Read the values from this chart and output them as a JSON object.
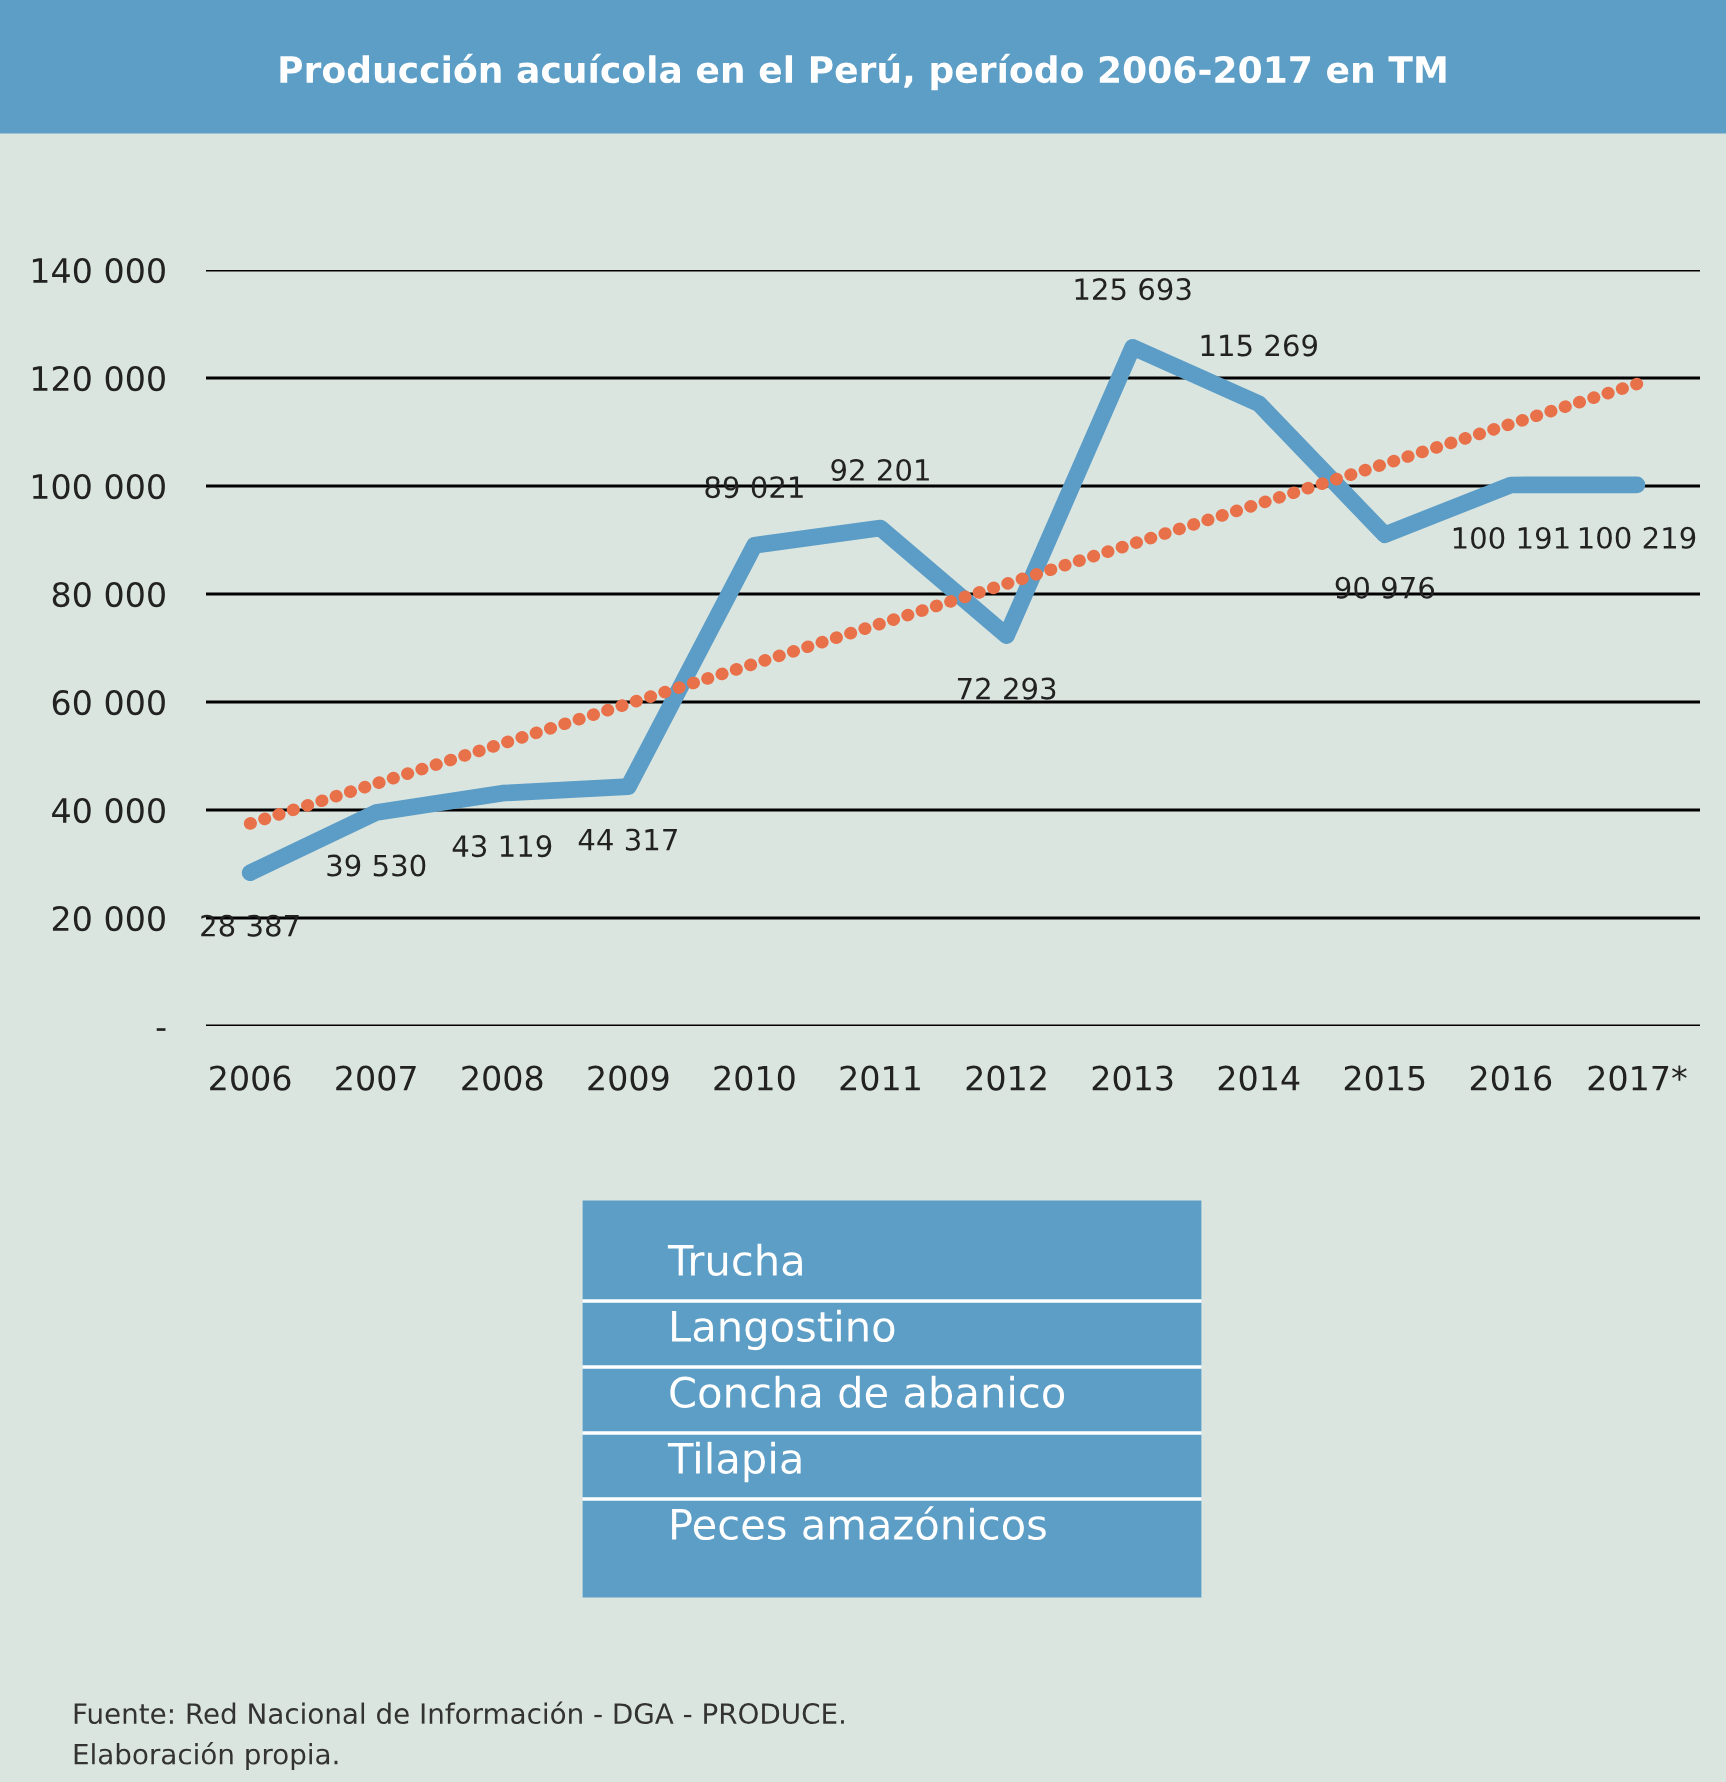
{
  "chart_data": [
    {
      "type": "line",
      "title": "Producción acuícola en el Perú, período 2006-2017 en TM",
      "categories": [
        "2006",
        "2007",
        "2008",
        "2009",
        "2010",
        "2011",
        "2012",
        "2013",
        "2014",
        "2015",
        "2016",
        "2017*"
      ],
      "series": [
        {
          "color": "#5b9dc6",
          "line_style": "solid",
          "values": [
            28387,
            39530,
            43119,
            44317,
            89021,
            92201,
            72293,
            125693,
            115269,
            90976,
            100191,
            100219
          ],
          "value_labels": [
            "28 387",
            "39 530",
            "43 119",
            "44 317",
            "89 021",
            "92 201",
            "72 293",
            "125 693",
            "115 269",
            "90 976",
            "100 191",
            "100 219"
          ]
        },
        {
          "color": "#e8714a",
          "line_style": "dotted",
          "values": [
            37500,
            44900,
            52300,
            59700,
            67100,
            74500,
            81900,
            89300,
            96700,
            104100,
            111500,
            118900
          ]
        }
      ],
      "ylim": [
        0,
        140000
      ],
      "yticks": [
        {
          "value": 0,
          "label": "-"
        },
        {
          "value": 20000,
          "label": "20 000"
        },
        {
          "value": 40000,
          "label": "40 000"
        },
        {
          "value": 60000,
          "label": "60 000"
        },
        {
          "value": 80000,
          "label": "80 000"
        },
        {
          "value": 100000,
          "label": "100 000"
        },
        {
          "value": 120000,
          "label": "120 000"
        },
        {
          "value": 140000,
          "label": "140 000"
        }
      ],
      "grid": "y",
      "legend": false,
      "annotations": [
        "Fuente: Red Nacional de Información - DGA - PRODUCE.",
        "Elaboración propia."
      ]
    },
    {
      "type": "other",
      "annotations": [
        "Trucha",
        "Langostino",
        "Concha de abanico",
        "Tilapia",
        "Peces amazónicos"
      ]
    }
  ]
}
